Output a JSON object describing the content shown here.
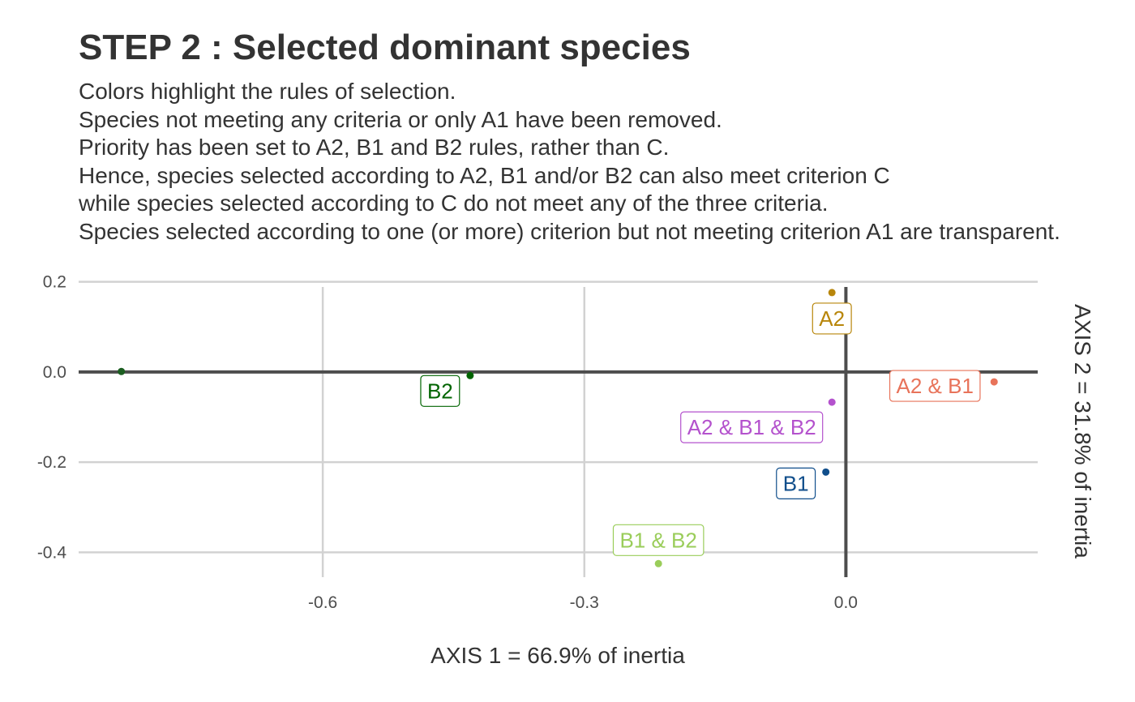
{
  "title": "STEP 2 : Selected dominant species",
  "subtitle_lines": [
    "Colors highlight the rules of selection.",
    "Species not meeting any criteria or only A1 have been removed.",
    "Priority has been set to A2, B1 and B2 rules, rather than C.",
    "Hence, species selected according to A2, B1 and/or B2 can also meet criterion C",
    "while species selected according to C do not meet any of the three criteria.",
    "Species selected according to one (or more) criterion but not meeting criterion A1 are transparent."
  ],
  "chart_data": {
    "type": "scatter",
    "title": "STEP 2 : Selected dominant species",
    "xlabel": "AXIS 1 = 66.9% of inertia",
    "ylabel": "AXIS 2 = 31.8% of inertia",
    "xlim": [
      -0.88,
      0.22
    ],
    "ylim": [
      -0.455,
      0.21
    ],
    "x_ticks": [
      -0.6,
      -0.3,
      0.0
    ],
    "x_tick_labels": [
      "-0.6",
      "-0.3",
      "0.0"
    ],
    "y_ticks": [
      -0.4,
      -0.2,
      0.0,
      0.2
    ],
    "y_tick_labels": [
      "-0.4",
      "-0.2",
      "0.0",
      "0.2"
    ],
    "grid": true,
    "reference_lines": {
      "x": 0,
      "y": 0
    },
    "points": [
      {
        "x": -0.831,
        "y": 0.001,
        "label": "",
        "color": "#1b5e20"
      },
      {
        "x": -0.431,
        "y": -0.008,
        "label": "B2",
        "color": "#006400"
      },
      {
        "x": -0.016,
        "y": 0.176,
        "label": "A2",
        "color": "#b8860b"
      },
      {
        "x": 0.17,
        "y": -0.022,
        "label": "A2 & B1",
        "color": "#e8735a"
      },
      {
        "x": -0.016,
        "y": -0.067,
        "label": "A2 & B1 & B2",
        "color": "#b452cd"
      },
      {
        "x": -0.023,
        "y": -0.222,
        "label": "B1",
        "color": "#104e8b"
      },
      {
        "x": -0.215,
        "y": -0.425,
        "label": "B1 & B2",
        "color": "#9acd5a"
      }
    ]
  }
}
